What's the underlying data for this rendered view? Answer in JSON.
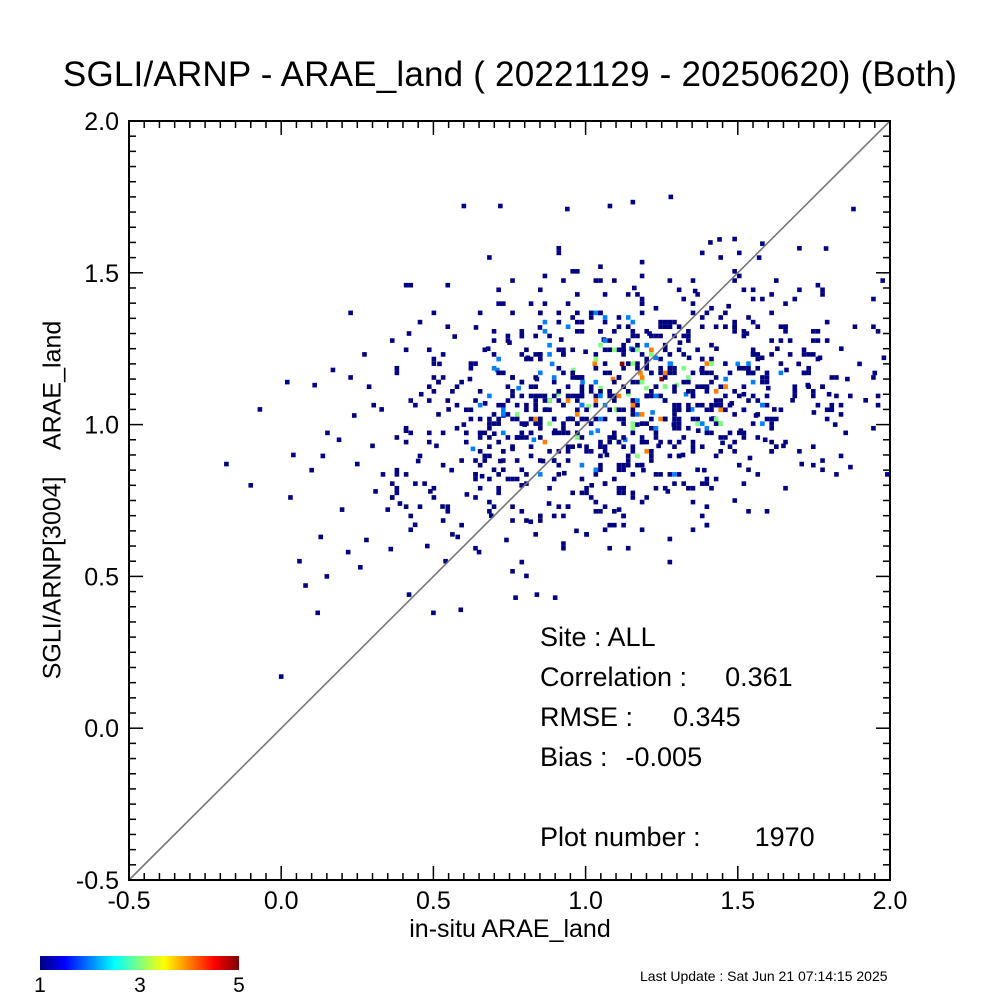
{
  "chart_data": {
    "type": "heatmap",
    "title": "SGLI/ARNP - ARAE_land ( 20221129 - 20250620) (Both)",
    "xlabel": "in-situ ARAE_land",
    "ylabel": "SGLI/ARNP[3004]    ARAE_land",
    "xlim": [
      -0.5,
      2.0
    ],
    "ylim": [
      -0.5,
      2.0
    ],
    "x_ticks": [
      "-0.5",
      "0.0",
      "0.5",
      "1.0",
      "1.5",
      "2.0"
    ],
    "y_ticks": [
      "-0.5",
      "0.0",
      "0.5",
      "1.0",
      "1.5",
      "2.0"
    ],
    "one_to_one_line": true,
    "colorbar": {
      "min": 1,
      "max": 5,
      "ticks": [
        "1",
        "3",
        "5"
      ]
    },
    "cells": [
      [
        -0.18,
        0.87,
        1
      ],
      [
        -0.07,
        1.05,
        1
      ],
      [
        -0.1,
        0.8,
        1
      ],
      [
        0.0,
        0.17,
        1
      ],
      [
        0.02,
        1.14,
        1
      ],
      [
        0.04,
        0.9,
        1
      ],
      [
        0.06,
        0.55,
        1
      ],
      [
        0.08,
        0.47,
        1
      ],
      [
        0.1,
        0.85,
        1
      ],
      [
        0.11,
        1.13,
        1
      ],
      [
        0.12,
        0.38,
        1
      ],
      [
        0.13,
        0.63,
        1
      ],
      [
        0.15,
        0.5,
        1
      ],
      [
        0.17,
        1.18,
        1
      ],
      [
        0.19,
        0.95,
        1
      ],
      [
        0.2,
        0.72,
        1
      ],
      [
        0.22,
        0.58,
        1
      ],
      [
        0.24,
        1.03,
        1
      ],
      [
        0.25,
        0.87,
        1
      ],
      [
        0.26,
        0.53,
        1
      ],
      [
        0.28,
        0.62,
        1
      ],
      [
        0.3,
        0.93,
        1
      ],
      [
        0.31,
        0.78,
        1
      ],
      [
        0.33,
        1.05,
        1
      ],
      [
        0.35,
        0.72,
        1
      ],
      [
        0.36,
        0.59,
        1
      ],
      [
        0.38,
        0.85,
        1
      ],
      [
        0.39,
        0.74,
        1
      ],
      [
        0.41,
        0.98,
        1
      ],
      [
        0.42,
        1.3,
        1
      ],
      [
        0.42,
        0.44,
        1
      ],
      [
        0.44,
        0.67,
        1
      ],
      [
        0.45,
        0.88,
        1
      ],
      [
        0.46,
        1.1,
        1
      ],
      [
        0.48,
        0.6,
        1
      ],
      [
        0.49,
        0.78,
        1
      ],
      [
        0.5,
        0.38,
        1
      ],
      [
        0.51,
        0.93,
        1
      ],
      [
        0.52,
        1.2,
        1
      ],
      [
        0.53,
        0.73,
        1
      ],
      [
        0.54,
        0.55,
        1
      ],
      [
        0.55,
        1.05,
        1
      ],
      [
        0.56,
        0.85,
        1
      ],
      [
        0.57,
        1.29,
        1
      ],
      [
        0.58,
        0.63,
        1
      ],
      [
        0.59,
        0.39,
        1
      ],
      [
        0.6,
        1.0,
        1
      ],
      [
        0.6,
        1.72,
        1
      ],
      [
        0.61,
        0.77,
        1
      ],
      [
        0.62,
        1.15,
        1
      ],
      [
        0.63,
        0.92,
        2
      ],
      [
        0.64,
        1.32,
        1
      ],
      [
        0.65,
        0.58,
        1
      ],
      [
        0.66,
        0.83,
        1
      ],
      [
        0.67,
        1.07,
        1
      ],
      [
        0.68,
        1.25,
        1
      ],
      [
        0.69,
        0.7,
        1
      ],
      [
        0.7,
        0.97,
        1
      ],
      [
        0.71,
        1.18,
        2
      ],
      [
        0.72,
        0.88,
        1
      ],
      [
        0.72,
        1.72,
        1
      ],
      [
        0.73,
        1.03,
        1
      ],
      [
        0.74,
        0.62,
        1
      ],
      [
        0.75,
        1.27,
        1
      ],
      [
        0.76,
        0.92,
        1
      ],
      [
        0.77,
        0.43,
        1
      ],
      [
        0.78,
        1.12,
        2
      ],
      [
        0.79,
        0.8,
        1
      ],
      [
        0.8,
        1.0,
        1
      ],
      [
        0.81,
        1.22,
        1
      ],
      [
        0.82,
        0.68,
        1
      ],
      [
        0.83,
        0.95,
        2
      ],
      [
        0.84,
        0.44,
        1
      ],
      [
        0.84,
        1.15,
        1
      ],
      [
        0.85,
        1.32,
        1
      ],
      [
        0.86,
        0.88,
        1
      ],
      [
        0.87,
        1.05,
        2
      ],
      [
        0.88,
        0.74,
        1
      ],
      [
        0.89,
        1.2,
        2
      ],
      [
        0.9,
        0.43,
        1
      ],
      [
        0.9,
        0.98,
        1
      ],
      [
        0.91,
        1.1,
        3
      ],
      [
        0.92,
        1.28,
        1
      ],
      [
        0.93,
        0.84,
        1
      ],
      [
        0.94,
        1.71,
        1
      ],
      [
        0.95,
        1.02,
        2
      ],
      [
        0.96,
        1.18,
        3
      ],
      [
        0.97,
        0.65,
        1
      ],
      [
        0.98,
        0.93,
        1
      ],
      [
        0.99,
        1.14,
        2
      ],
      [
        1.0,
        1.24,
        1
      ],
      [
        1.01,
        1.06,
        3
      ],
      [
        1.02,
        0.8,
        1
      ],
      [
        1.03,
        1.2,
        4
      ],
      [
        1.04,
        0.98,
        2
      ],
      [
        1.05,
        1.12,
        3
      ],
      [
        1.06,
        1.28,
        1
      ],
      [
        1.07,
        0.9,
        1
      ],
      [
        1.08,
        1.72,
        1
      ],
      [
        1.09,
        1.15,
        4
      ],
      [
        1.1,
        1.05,
        3
      ],
      [
        1.11,
        0.72,
        1
      ],
      [
        1.12,
        1.2,
        5
      ],
      [
        1.13,
        0.95,
        2
      ],
      [
        1.14,
        1.1,
        3
      ],
      [
        1.15,
        1.25,
        2
      ],
      [
        1.16,
        1.45,
        1
      ],
      [
        1.17,
        1.0,
        1
      ],
      [
        1.18,
        1.17,
        4
      ],
      [
        1.19,
        0.85,
        1
      ],
      [
        1.2,
        1.12,
        3
      ],
      [
        1.21,
        1.3,
        1
      ],
      [
        1.22,
        1.04,
        2
      ],
      [
        1.23,
        1.22,
        2
      ],
      [
        1.24,
        0.93,
        1
      ],
      [
        1.25,
        1.15,
        5
      ],
      [
        1.26,
        1.08,
        2
      ],
      [
        1.27,
        0.78,
        1
      ],
      [
        1.28,
        1.75,
        1
      ],
      [
        1.28,
        1.2,
        2
      ],
      [
        1.29,
        1.0,
        1
      ],
      [
        1.3,
        1.13,
        3
      ],
      [
        1.31,
        1.27,
        1
      ],
      [
        1.32,
        0.9,
        1
      ],
      [
        1.33,
        1.1,
        2
      ],
      [
        1.34,
        1.22,
        1
      ],
      [
        1.35,
        1.05,
        2
      ],
      [
        1.36,
        1.44,
        1
      ],
      [
        1.37,
        0.98,
        1
      ],
      [
        1.38,
        1.18,
        2
      ],
      [
        1.39,
        0.85,
        1
      ],
      [
        1.4,
        1.12,
        3
      ],
      [
        1.41,
        1.6,
        1
      ],
      [
        1.42,
        1.02,
        1
      ],
      [
        1.43,
        1.25,
        1
      ],
      [
        1.44,
        1.61,
        1
      ],
      [
        1.45,
        0.94,
        1
      ],
      [
        1.46,
        1.15,
        2
      ],
      [
        1.47,
        1.39,
        1
      ],
      [
        1.48,
        1.07,
        1
      ],
      [
        1.49,
        0.75,
        1
      ],
      [
        1.5,
        1.2,
        2
      ],
      [
        1.51,
        0.98,
        1
      ],
      [
        1.52,
        1.1,
        1
      ],
      [
        1.53,
        1.3,
        1
      ],
      [
        1.54,
        0.89,
        1
      ],
      [
        1.55,
        1.17,
        1
      ],
      [
        1.56,
        1.03,
        1
      ],
      [
        1.57,
        1.55,
        1
      ],
      [
        1.58,
        1.22,
        1
      ],
      [
        1.59,
        0.95,
        1
      ],
      [
        1.6,
        1.12,
        1
      ],
      [
        1.62,
        1.05,
        1
      ],
      [
        1.63,
        1.25,
        1
      ],
      [
        1.65,
        0.93,
        1
      ],
      [
        1.66,
        1.18,
        1
      ],
      [
        1.68,
        1.08,
        1
      ],
      [
        1.7,
        1.2,
        1
      ],
      [
        1.71,
        0.87,
        1
      ],
      [
        1.73,
        1.13,
        1
      ],
      [
        1.75,
        1.04,
        1
      ],
      [
        1.77,
        1.22,
        1
      ],
      [
        1.79,
        1.58,
        1
      ],
      [
        1.8,
        1.1,
        1
      ],
      [
        1.82,
        1.0,
        1
      ],
      [
        1.84,
        1.25,
        1
      ],
      [
        1.86,
        1.15,
        1
      ],
      [
        1.87,
        0.86,
        1
      ],
      [
        1.88,
        1.71,
        1
      ],
      [
        1.9,
        1.2,
        1
      ],
      [
        1.92,
        1.08,
        1
      ],
      [
        1.95,
        1.17,
        1
      ],
      [
        1.98,
        1.22,
        1
      ]
    ],
    "cluster_fill": {
      "center": [
        1.12,
        1.08
      ],
      "spread": [
        0.36,
        0.2
      ],
      "count": 900
    }
  },
  "stats": {
    "site_label": "Site :",
    "site_value": "ALL",
    "corr_label": "Correlation :",
    "corr_value": "0.361",
    "rmse_label": "RMSE :",
    "rmse_value": "0.345",
    "bias_label": "Bias :",
    "bias_value": "-0.005",
    "plot_label": "Plot number :",
    "plot_value": "1970"
  },
  "footer": {
    "last_update": "Last Update : Sat Jun 21 07:14:15 2025"
  }
}
